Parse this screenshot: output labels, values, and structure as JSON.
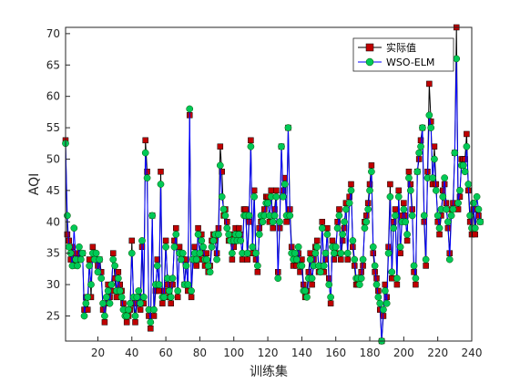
{
  "chart_data": {
    "type": "line",
    "title": "",
    "xlabel": "训练集",
    "ylabel": "AQI",
    "xlim": [
      1,
      240
    ],
    "ylim": [
      21,
      71
    ],
    "xticks": [
      20,
      40,
      60,
      80,
      100,
      120,
      140,
      160,
      180,
      200,
      220,
      240
    ],
    "yticks": [
      25,
      30,
      35,
      40,
      45,
      50,
      55,
      60,
      65,
      70
    ],
    "grid": false,
    "legend_position": "top-right",
    "colors": {
      "actual_line": "#000000",
      "actual_marker": "#c00000",
      "pred_line": "#0000ff",
      "pred_marker": "#00c957"
    },
    "series": [
      {
        "name": "实际值",
        "values": [
          53,
          38,
          37,
          34,
          36,
          33,
          35,
          34,
          34,
          35,
          35,
          26,
          28,
          26,
          34,
          28,
          36,
          35,
          34,
          33,
          34,
          32,
          26,
          24,
          27,
          30,
          28,
          29,
          35,
          31,
          28,
          32,
          30,
          29,
          27,
          26,
          24,
          25,
          26,
          37,
          27,
          24,
          27,
          28,
          26,
          36,
          27,
          53,
          48,
          25,
          23,
          41,
          25,
          29,
          34,
          29,
          48,
          27,
          29,
          37,
          30,
          28,
          27,
          30,
          37,
          39,
          28,
          36,
          35,
          34,
          30,
          34,
          29,
          57,
          28,
          34,
          36,
          33,
          39,
          34,
          38,
          35,
          33,
          35,
          32,
          33,
          37,
          38,
          37,
          35,
          39,
          52,
          48,
          41,
          42,
          40,
          37,
          38,
          34,
          36,
          39,
          38,
          39,
          38,
          34,
          42,
          42,
          34,
          40,
          53,
          35,
          45,
          34,
          32,
          39,
          40,
          41,
          42,
          44,
          44,
          40,
          45,
          39,
          42,
          45,
          32,
          39,
          52,
          45,
          47,
          40,
          55,
          42,
          36,
          33,
          34,
          33,
          35,
          32,
          34,
          30,
          28,
          29,
          32,
          35,
          30,
          34,
          36,
          37,
          32,
          33,
          40,
          32,
          34,
          39,
          31,
          27,
          37,
          34,
          35,
          40,
          42,
          34,
          37,
          39,
          43,
          34,
          44,
          46,
          36,
          33,
          30,
          30,
          31,
          32,
          33,
          40,
          41,
          43,
          46,
          49,
          35,
          32,
          31,
          29,
          26,
          21,
          25,
          30,
          28,
          36,
          46,
          31,
          40,
          42,
          30,
          45,
          35,
          41,
          43,
          41,
          37,
          48,
          46,
          42,
          32,
          30,
          48,
          50,
          53,
          55,
          40,
          33,
          48,
          62,
          56,
          46,
          52,
          46,
          40,
          38,
          41,
          45,
          46,
          43,
          39,
          35,
          42,
          43,
          51,
          71,
          42,
          44,
          50,
          50,
          50,
          54,
          45,
          40,
          38,
          42,
          38,
          42,
          41,
          40
        ]
      },
      {
        "name": "WSO-ELM",
        "values": [
          52.5,
          41,
          36,
          35,
          33,
          39,
          34,
          33,
          36,
          34,
          35,
          25,
          27,
          28,
          33,
          30,
          35,
          34,
          35,
          32,
          34,
          31,
          27,
          25,
          28,
          29,
          27,
          30,
          34,
          33,
          29,
          31,
          29,
          28,
          26,
          25,
          25,
          26,
          27,
          35,
          28,
          25,
          28,
          29,
          27,
          37,
          28,
          51,
          47,
          26,
          24,
          41,
          26,
          30,
          33,
          30,
          46,
          28,
          28,
          36,
          31,
          29,
          28,
          31,
          36,
          38,
          29,
          35,
          34,
          35,
          30,
          33,
          30,
          58,
          29,
          34,
          35,
          34,
          38,
          35,
          37,
          36,
          34,
          34,
          33,
          32,
          36,
          37,
          38,
          34,
          38,
          49,
          44,
          42,
          41,
          39,
          38,
          37,
          35,
          37,
          38,
          37,
          38,
          37,
          35,
          41,
          41,
          35,
          41,
          52,
          36,
          44,
          35,
          33,
          38,
          41,
          40,
          41,
          43,
          43,
          41,
          44,
          40,
          41,
          44,
          31,
          40,
          52,
          44,
          46,
          41,
          55,
          41,
          35,
          34,
          35,
          34,
          36,
          33,
          33,
          29,
          29,
          28,
          31,
          34,
          31,
          33,
          35,
          36,
          33,
          32,
          39,
          33,
          35,
          38,
          30,
          28,
          36,
          35,
          36,
          39,
          41,
          35,
          38,
          40,
          42,
          35,
          43,
          45,
          37,
          34,
          31,
          31,
          30,
          31,
          34,
          39,
          40,
          42,
          45,
          48,
          36,
          33,
          30,
          28,
          27,
          21,
          26,
          29,
          27,
          35,
          44,
          32,
          39,
          41,
          31,
          44,
          36,
          40,
          42,
          40,
          38,
          47,
          45,
          41,
          33,
          31,
          48,
          51,
          52,
          55,
          41,
          34,
          47,
          57,
          55,
          47,
          50,
          45,
          41,
          39,
          42,
          44,
          47,
          42,
          40,
          34,
          41,
          42,
          51,
          66,
          43,
          45,
          49,
          49,
          48,
          52,
          46,
          41,
          39,
          43,
          39,
          44,
          42,
          40
        ]
      }
    ]
  }
}
